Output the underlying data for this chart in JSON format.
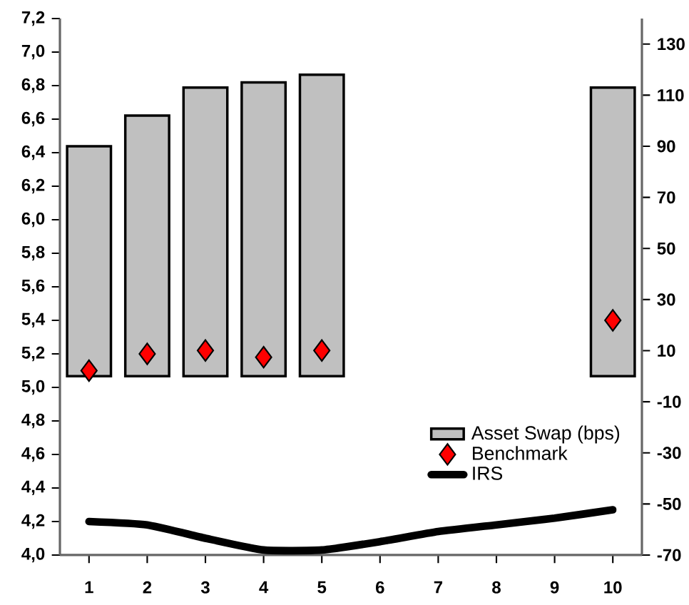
{
  "chart_data": {
    "type": "bar",
    "categories": [
      "1",
      "2",
      "3",
      "4",
      "5",
      "6",
      "7",
      "8",
      "9",
      "10"
    ],
    "series": [
      {
        "name": "Asset Swap (bps)",
        "axis": "y2",
        "color": "#c0c0c0",
        "values": [
          90,
          102,
          113,
          115,
          118,
          null,
          null,
          null,
          null,
          113
        ]
      },
      {
        "name": "Benchmark",
        "type": "scatter",
        "marker": "diamond",
        "color": "#ff0000",
        "values": [
          5.1,
          5.2,
          5.22,
          5.18,
          5.22,
          null,
          null,
          null,
          null,
          5.4
        ]
      },
      {
        "name": "IRS",
        "type": "line",
        "marker": "none",
        "color": "#000000",
        "values": [
          4.2,
          4.18,
          4.1,
          4.03,
          4.03,
          4.08,
          4.14,
          4.18,
          4.22,
          4.27
        ]
      }
    ],
    "ylim": [
      4.0,
      7.2
    ],
    "yticks": [
      {
        "value": 4.0,
        "label": "4,0"
      },
      {
        "value": 4.2,
        "label": "4,2"
      },
      {
        "value": 4.4,
        "label": "4,4"
      },
      {
        "value": 4.6,
        "label": "4,6"
      },
      {
        "value": 4.8,
        "label": "4,8"
      },
      {
        "value": 5.0,
        "label": "5,0"
      },
      {
        "value": 5.2,
        "label": "5,2"
      },
      {
        "value": 5.4,
        "label": "5,4"
      },
      {
        "value": 5.6,
        "label": "5,6"
      },
      {
        "value": 5.8,
        "label": "5,8"
      },
      {
        "value": 6.0,
        "label": "6,0"
      },
      {
        "value": 6.2,
        "label": "6,2"
      },
      {
        "value": 6.4,
        "label": "6,4"
      },
      {
        "value": 6.6,
        "label": "6,6"
      },
      {
        "value": 6.8,
        "label": "6,8"
      },
      {
        "value": 7.0,
        "label": "7,0"
      },
      {
        "value": 7.2,
        "label": "7,2"
      }
    ],
    "y2lim": [
      -70,
      140
    ],
    "y2ticks": [
      -70,
      -50,
      -30,
      -10,
      10,
      30,
      50,
      70,
      90,
      110,
      130
    ],
    "legend": "bottom right"
  }
}
